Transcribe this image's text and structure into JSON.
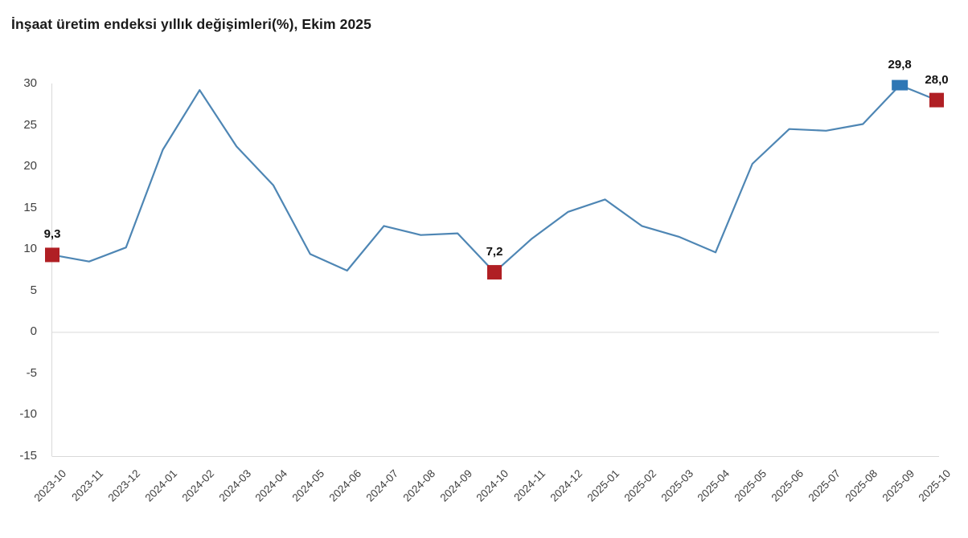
{
  "title": "İnşaat üretim endeksi yıllık değişimleri(%), Ekim 2025",
  "chart_data": {
    "type": "line",
    "title": "İnşaat üretim endeksi yıllık değişimleri(%), Ekim 2025",
    "categories": [
      "2023-10",
      "2023-11",
      "2023-12",
      "2024-01",
      "2024-02",
      "2024-03",
      "2024-04",
      "2024-05",
      "2024-06",
      "2024-07",
      "2024-08",
      "2024-09",
      "2024-10",
      "2024-11",
      "2024-12",
      "2025-01",
      "2025-02",
      "2025-03",
      "2025-04",
      "2025-05",
      "2025-06",
      "2025-07",
      "2025-08",
      "2025-09",
      "2025-10"
    ],
    "values": [
      9.3,
      8.5,
      10.2,
      22.0,
      29.2,
      22.4,
      17.7,
      9.4,
      7.4,
      12.8,
      11.7,
      11.9,
      7.2,
      11.2,
      14.5,
      16.0,
      12.8,
      11.5,
      9.6,
      20.3,
      24.5,
      24.3,
      25.1,
      29.8,
      28.0
    ],
    "ylim": [
      -15,
      30
    ],
    "y_ticks": [
      "30",
      "25",
      "20",
      "15",
      "10",
      "5",
      "0",
      "-5",
      "-10",
      "-15"
    ],
    "grid": "zero-line-only",
    "legend": "none",
    "point_labels": [
      {
        "index": 0,
        "text": "9,3"
      },
      {
        "index": 12,
        "text": "7,2"
      },
      {
        "index": 23,
        "text": "29,8"
      },
      {
        "index": 24,
        "text": "28,0"
      }
    ],
    "markers": [
      {
        "index": 0,
        "color": "red"
      },
      {
        "index": 12,
        "color": "red"
      },
      {
        "index": 23,
        "color": "blue"
      },
      {
        "index": 24,
        "color": "red"
      }
    ],
    "colors": {
      "line": "#4e86b4",
      "red": "#b01f24",
      "blue": "#2f77b5",
      "grid": "#d9d9d9",
      "axis_text": "#3f3f3f",
      "title_text": "#1a1a1a"
    }
  }
}
